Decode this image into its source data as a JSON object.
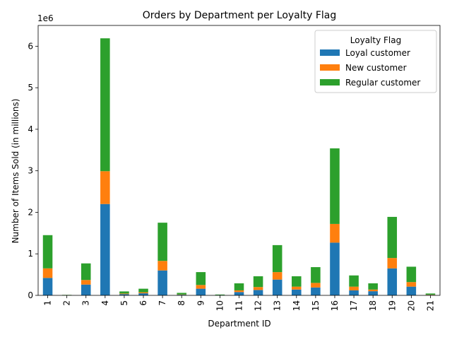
{
  "chart_data": {
    "type": "bar",
    "stacked": true,
    "title": "Orders by Department per Loyalty Flag",
    "xlabel": "Department ID",
    "ylabel": "Number of Items Sold (in millions)",
    "y_offset_label": "1e6",
    "ylim": [
      0,
      6500000
    ],
    "yticks": [
      0,
      1000000,
      2000000,
      3000000,
      4000000,
      5000000,
      6000000
    ],
    "ytick_labels": [
      "0",
      "1",
      "2",
      "3",
      "4",
      "5",
      "6"
    ],
    "categories": [
      "1",
      "2",
      "3",
      "4",
      "5",
      "6",
      "7",
      "8",
      "9",
      "10",
      "11",
      "12",
      "13",
      "14",
      "15",
      "16",
      "17",
      "18",
      "19",
      "20",
      "21"
    ],
    "legend_title": "Loyalty Flag",
    "legend_position": "top-right",
    "grid": false,
    "series": [
      {
        "name": "Loyal customer",
        "color": "#1f77b4",
        "values": [
          420000,
          3000,
          260000,
          2200000,
          30000,
          50000,
          600000,
          15000,
          160000,
          7000,
          80000,
          130000,
          380000,
          140000,
          190000,
          1270000,
          120000,
          100000,
          650000,
          210000,
          12000
        ]
      },
      {
        "name": "New customer",
        "color": "#ff7f0e",
        "values": [
          230000,
          3000,
          110000,
          790000,
          15000,
          25000,
          230000,
          7000,
          90000,
          2000,
          40000,
          70000,
          180000,
          70000,
          110000,
          450000,
          90000,
          40000,
          250000,
          110000,
          6000
        ]
      },
      {
        "name": "Regular customer",
        "color": "#2ca02c",
        "values": [
          800000,
          6000,
          400000,
          3200000,
          50000,
          85000,
          920000,
          38000,
          310000,
          11000,
          170000,
          260000,
          650000,
          250000,
          380000,
          1820000,
          270000,
          150000,
          990000,
          370000,
          27000
        ]
      }
    ]
  }
}
